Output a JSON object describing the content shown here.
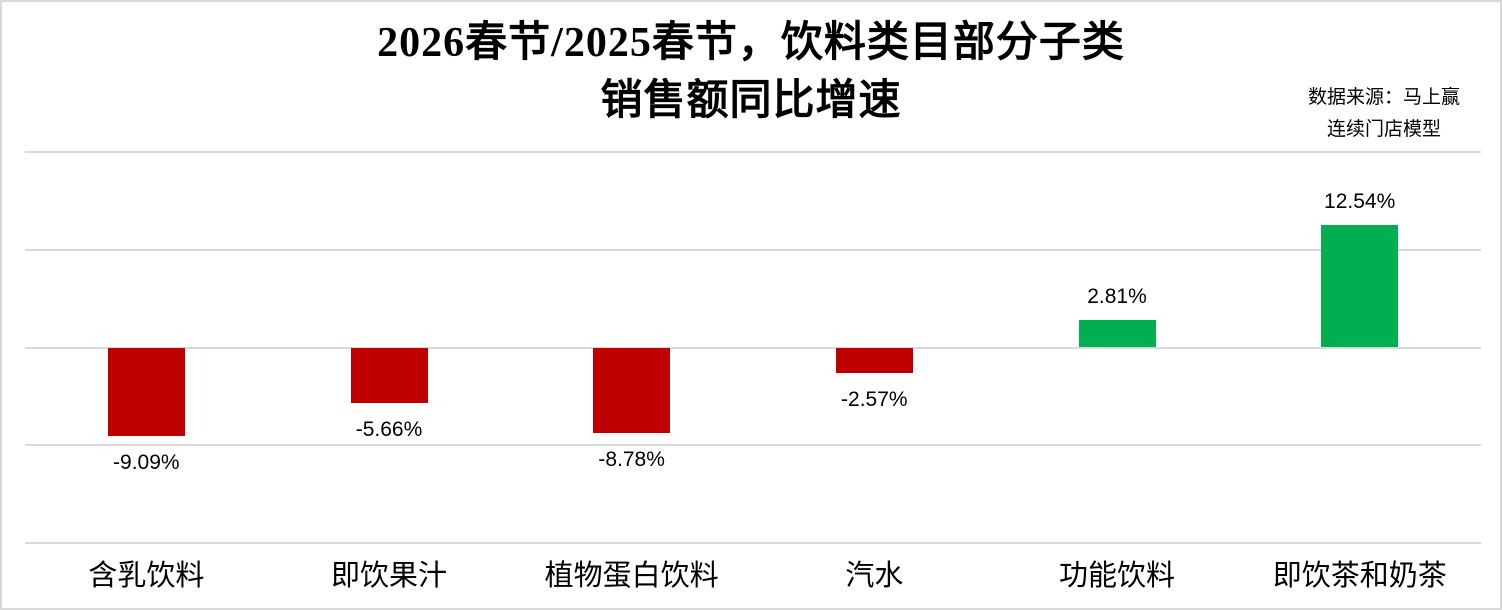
{
  "title": {
    "line1": "2026春节/2025春节，饮料类目部分子类",
    "line2": "销售额同比增速"
  },
  "source": {
    "line1": "数据来源：马上赢",
    "line2": "连续门店模型"
  },
  "colors": {
    "positive_bar": "#00B050",
    "negative_bar": "#C00000",
    "gridline": "#D9D9D9",
    "border": "#D9D9D9",
    "text": "#000000"
  },
  "chart_data": {
    "type": "bar",
    "title": "2026春节/2025春节，饮料类目部分子类销售额同比增速",
    "categories": [
      "含乳饮料",
      "即饮果汁",
      "植物蛋白饮料",
      "汽水",
      "功能饮料",
      "即饮茶和奶茶"
    ],
    "values": [
      -9.09,
      -5.66,
      -8.78,
      -2.57,
      2.81,
      12.54
    ],
    "value_labels": [
      "-9.09%",
      "-5.66%",
      "-8.78%",
      "-2.57%",
      "2.81%",
      "12.54%"
    ],
    "xlabel": "",
    "ylabel": "",
    "ylim": [
      -20,
      20
    ],
    "gridline_step": 10,
    "grid": true,
    "legend": false,
    "y_axis_labels_visible": false
  }
}
